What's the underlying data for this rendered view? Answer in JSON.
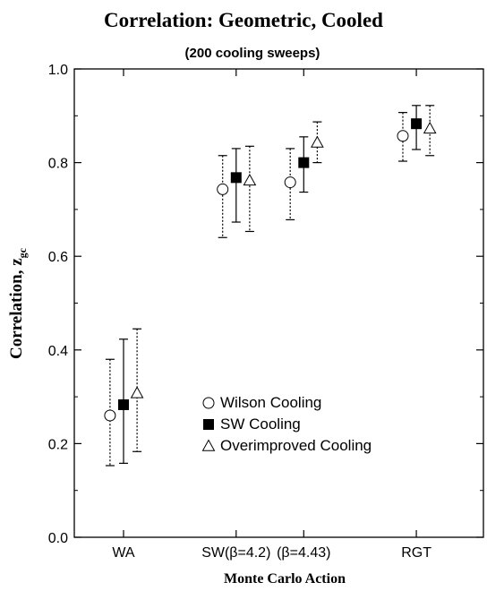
{
  "chart_data": {
    "type": "scatter",
    "title": "Correlation: Geometric, Cooled",
    "subtitle": "(200 cooling sweeps)",
    "xlabel": "Monte Carlo Action",
    "ylabel_main": "Correlation, z",
    "ylabel_sub": "gc",
    "ylim": [
      0.0,
      1.0
    ],
    "yticks": [
      "0.0",
      "0.2",
      "0.4",
      "0.6",
      "0.8",
      "1.0"
    ],
    "ytick_values": [
      0.0,
      0.2,
      0.4,
      0.6,
      0.8,
      1.0
    ],
    "categories": [
      {
        "label": "WA",
        "x": 1
      },
      {
        "label": "SW(β=4.2)",
        "x": 2
      },
      {
        "label": "(β=4.43)",
        "x": 2.6
      },
      {
        "label": "RGT",
        "x": 3.6
      }
    ],
    "series": [
      {
        "name": "Wilson Cooling",
        "marker": "circle-open",
        "line": "dotted",
        "offset": -0.12,
        "points": [
          {
            "x": 1,
            "y": 0.26,
            "lo": 0.153,
            "hi": 0.38
          },
          {
            "x": 2,
            "y": 0.743,
            "lo": 0.64,
            "hi": 0.815
          },
          {
            "x": 2.6,
            "y": 0.758,
            "lo": 0.678,
            "hi": 0.83
          },
          {
            "x": 3.6,
            "y": 0.857,
            "lo": 0.803,
            "hi": 0.907
          }
        ]
      },
      {
        "name": "SW Cooling",
        "marker": "square-filled",
        "line": "solid",
        "offset": 0,
        "points": [
          {
            "x": 1,
            "y": 0.283,
            "lo": 0.158,
            "hi": 0.423
          },
          {
            "x": 2,
            "y": 0.768,
            "lo": 0.673,
            "hi": 0.83
          },
          {
            "x": 2.6,
            "y": 0.8,
            "lo": 0.737,
            "hi": 0.855
          },
          {
            "x": 3.6,
            "y": 0.883,
            "lo": 0.828,
            "hi": 0.922
          }
        ]
      },
      {
        "name": "Overimproved Cooling",
        "marker": "triangle-open",
        "line": "dotted",
        "offset": 0.12,
        "points": [
          {
            "x": 1,
            "y": 0.308,
            "lo": 0.183,
            "hi": 0.445
          },
          {
            "x": 2,
            "y": 0.762,
            "lo": 0.653,
            "hi": 0.835
          },
          {
            "x": 2.6,
            "y": 0.843,
            "lo": 0.8,
            "hi": 0.887
          },
          {
            "x": 3.6,
            "y": 0.873,
            "lo": 0.815,
            "hi": 0.922
          }
        ]
      }
    ],
    "legend_position": "lower-center"
  }
}
